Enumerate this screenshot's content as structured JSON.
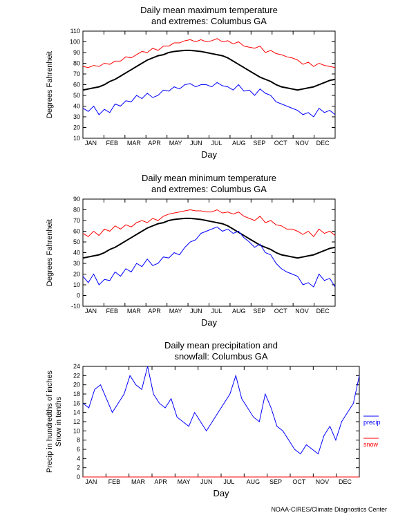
{
  "months": [
    "JAN",
    "FEB",
    "MAR",
    "APR",
    "MAY",
    "JUN",
    "JUL",
    "AUG",
    "SEP",
    "OCT",
    "NOV",
    "DEC"
  ],
  "credit": "NOAA-CIRES/Climate Diagnostics Center",
  "colors": {
    "red": "#ff0000",
    "blue": "#0000ff",
    "black": "#000000",
    "grid": "#000000",
    "bg": "#ffffff"
  },
  "c1": {
    "title1": "Daily mean maximum temperature",
    "title2": "and extremes: Columbus GA",
    "ylabel": "Degrees Fahrenheit",
    "xlabel": "Day",
    "ylim": [
      10,
      110
    ],
    "ytick": 10,
    "red": [
      77,
      76,
      78,
      77,
      80,
      79,
      82,
      82,
      86,
      85,
      88,
      91,
      90,
      94,
      92,
      96,
      96,
      99,
      99,
      101,
      102,
      100,
      102,
      100,
      101,
      103,
      100,
      101,
      98,
      100,
      96,
      95,
      94,
      96,
      90,
      92,
      89,
      88,
      86,
      85,
      83,
      79,
      81,
      77,
      80,
      78,
      77,
      76
    ],
    "black": [
      55,
      56,
      57,
      58,
      60,
      63,
      65,
      68,
      71,
      74,
      77,
      80,
      83,
      85,
      87,
      88,
      90,
      91,
      91.5,
      92,
      92,
      91.5,
      91,
      90,
      89,
      88,
      87,
      85,
      82,
      79,
      76,
      73,
      70,
      67,
      65,
      63,
      60,
      58,
      57,
      56,
      55,
      56,
      57,
      58,
      60,
      62,
      64,
      65
    ],
    "blue": [
      38,
      35,
      40,
      32,
      37,
      34,
      42,
      40,
      45,
      44,
      50,
      47,
      52,
      48,
      50,
      55,
      54,
      58,
      56,
      60,
      61,
      58,
      60,
      60,
      58,
      62,
      59,
      58,
      55,
      60,
      54,
      55,
      50,
      56,
      52,
      50,
      44,
      42,
      40,
      38,
      36,
      32,
      34,
      30,
      38,
      34,
      36,
      32
    ]
  },
  "c2": {
    "title1": "Daily mean minimum temperature",
    "title2": "and extremes: Columbus GA",
    "ylabel": "Degrees Fahrenheit",
    "xlabel": "Day",
    "ylim": [
      -10,
      90
    ],
    "ytick": 10,
    "red": [
      58,
      55,
      60,
      56,
      62,
      60,
      65,
      62,
      66,
      64,
      68,
      70,
      68,
      72,
      70,
      74,
      76,
      77,
      78,
      79,
      80,
      79,
      79,
      78,
      78,
      80,
      77,
      78,
      76,
      78,
      74,
      72,
      70,
      74,
      68,
      70,
      66,
      65,
      62,
      62,
      60,
      57,
      60,
      55,
      62,
      58,
      60,
      56
    ],
    "black": [
      35,
      36,
      37,
      38,
      40,
      43,
      45,
      48,
      51,
      54,
      57,
      60,
      63,
      65,
      67,
      68,
      70,
      71,
      71.5,
      72,
      72,
      71.5,
      71,
      70,
      69,
      68,
      67,
      65,
      62,
      59,
      56,
      53,
      50,
      47,
      45,
      43,
      40,
      38,
      37,
      36,
      35,
      36,
      37,
      38,
      40,
      42,
      44,
      45
    ],
    "blue": [
      18,
      12,
      20,
      10,
      15,
      14,
      22,
      18,
      25,
      22,
      30,
      27,
      34,
      28,
      30,
      36,
      35,
      40,
      38,
      45,
      50,
      52,
      58,
      60,
      62,
      64,
      60,
      62,
      58,
      60,
      54,
      50,
      45,
      48,
      40,
      38,
      30,
      25,
      22,
      20,
      18,
      10,
      12,
      8,
      20,
      14,
      16,
      8
    ]
  },
  "c3": {
    "title1": "Daily mean precipitation and",
    "title2": "snowfall: Columbus GA",
    "ylabel": "Precip in hundredths of inches",
    "ylabel2": "Snow in tenths",
    "xlabel": "Day",
    "ylim": [
      0,
      24
    ],
    "ytick": 2,
    "legend": [
      "precip",
      "snow"
    ],
    "blue": [
      16,
      15,
      19,
      20,
      17,
      14,
      16,
      18,
      22,
      20,
      19,
      24,
      18,
      16,
      15,
      17,
      13,
      12,
      11,
      14,
      12,
      10,
      12,
      14,
      16,
      18,
      22,
      17,
      15,
      13,
      12,
      18,
      15,
      11,
      10,
      8,
      6,
      5,
      7,
      6,
      5,
      9,
      11,
      8,
      12,
      14,
      16,
      22
    ],
    "red": [
      0,
      0,
      0,
      0,
      0,
      0,
      0,
      0,
      0,
      0,
      0,
      0,
      0,
      0,
      0,
      0,
      0,
      0,
      0,
      0,
      0,
      0,
      0,
      0,
      0,
      0,
      0,
      0,
      0,
      0,
      0,
      0,
      0,
      0,
      0,
      0,
      0,
      0,
      0,
      0,
      0,
      0,
      0,
      0,
      0,
      0,
      0,
      0
    ]
  }
}
